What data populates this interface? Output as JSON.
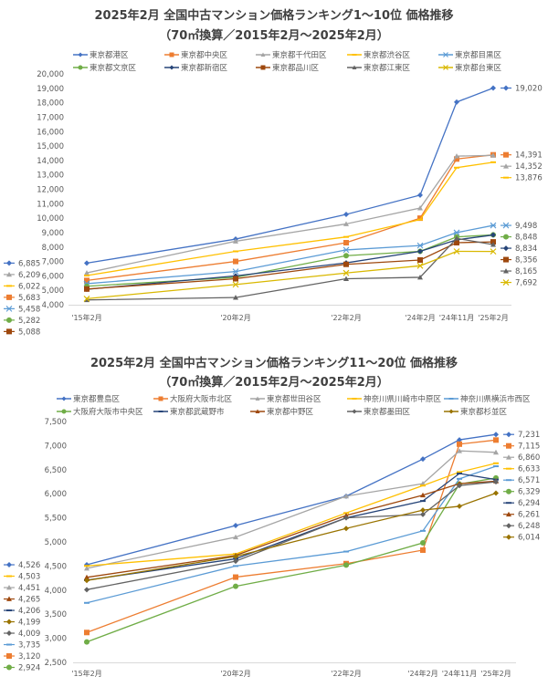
{
  "chart_data": [
    {
      "type": "line",
      "title": "2025年2月 全国中古マンション価格ランキング1～10位 価格推移",
      "subtitle": "（70㎡換算／2015年2月～2025年2月）",
      "categories": [
        "'15年2月",
        "'20年2月",
        "'22年2月",
        "'24年2月",
        "'24年11月",
        "'25年2月"
      ],
      "ylim": [
        4000,
        20000
      ],
      "ytick_step": 1000,
      "grid": false,
      "legend": "top",
      "series": [
        {
          "name": "東京都港区",
          "color": "#4472C4",
          "marker": "diamond",
          "values": [
            6885,
            8550,
            10260,
            11600,
            18050,
            19020
          ]
        },
        {
          "name": "東京都中央区",
          "color": "#ED7D31",
          "marker": "square",
          "values": [
            5683,
            7000,
            8300,
            10000,
            14100,
            14391
          ]
        },
        {
          "name": "東京都千代田区",
          "color": "#A5A5A5",
          "marker": "triangle",
          "values": [
            6209,
            8400,
            9600,
            10700,
            14300,
            14352
          ]
        },
        {
          "name": "東京都渋谷区",
          "color": "#FFC000",
          "marker": "dash",
          "values": [
            6022,
            7700,
            8700,
            9900,
            13500,
            13876
          ]
        },
        {
          "name": "東京都目黒区",
          "color": "#5B9BD5",
          "marker": "star",
          "values": [
            5458,
            6300,
            7800,
            8100,
            9000,
            9498
          ]
        },
        {
          "name": "東京都文京区",
          "color": "#70AD47",
          "marker": "circle",
          "values": [
            5282,
            5900,
            7400,
            7700,
            8700,
            8848
          ]
        },
        {
          "name": "東京都新宿区",
          "color": "#264478",
          "marker": "diamond",
          "values": [
            5068,
            6000,
            6900,
            7700,
            8500,
            8834
          ]
        },
        {
          "name": "東京都品川区",
          "color": "#9E480E",
          "marker": "square",
          "values": [
            5088,
            5800,
            6800,
            7100,
            8300,
            8356
          ]
        },
        {
          "name": "東京都江東区",
          "color": "#636363",
          "marker": "triangle",
          "values": [
            4330,
            4500,
            5800,
            5900,
            8600,
            8165
          ]
        },
        {
          "name": "東京都台東区",
          "color": "#D9B800",
          "marker": "x",
          "values": [
            4417,
            5400,
            6200,
            6700,
            7700,
            7692
          ]
        }
      ]
    },
    {
      "type": "line",
      "title": "2025年2月 全国中古マンション価格ランキング11～20位 価格推移",
      "subtitle": "（70㎡換算／2015年2月～2025年2月）",
      "categories": [
        "'15年2月",
        "'20年2月",
        "'22年2月",
        "'24年2月",
        "'24年11月",
        "'25年2月"
      ],
      "ylim": [
        2500,
        7500
      ],
      "ytick_step": 500,
      "grid": false,
      "legend": "top",
      "series": [
        {
          "name": "東京都豊島区",
          "color": "#4472C4",
          "marker": "diamond",
          "values": [
            4526,
            5340,
            5950,
            6720,
            7120,
            7231
          ]
        },
        {
          "name": "大阪府大阪市北区",
          "color": "#ED7D31",
          "marker": "square",
          "values": [
            3120,
            4270,
            4550,
            4830,
            7030,
            7115
          ]
        },
        {
          "name": "東京都世田谷区",
          "color": "#A5A5A5",
          "marker": "triangle",
          "values": [
            4451,
            5100,
            5950,
            6210,
            6890,
            6860
          ]
        },
        {
          "name": "神奈川県川崎市中原区",
          "color": "#FFC000",
          "marker": "dash",
          "values": [
            4503,
            4750,
            5600,
            6170,
            6450,
            6633
          ]
        },
        {
          "name": "神奈川県横浜市西区",
          "color": "#5B9BD5",
          "marker": "dash",
          "values": [
            3735,
            4500,
            4800,
            5230,
            6310,
            6571
          ]
        },
        {
          "name": "大阪府大阪市中央区",
          "color": "#70AD47",
          "marker": "circle",
          "values": [
            2924,
            4080,
            4520,
            4980,
            6200,
            6329
          ]
        },
        {
          "name": "東京都武蔵野市",
          "color": "#264478",
          "marker": "dash",
          "values": [
            4206,
            4650,
            5500,
            5850,
            6420,
            6294
          ]
        },
        {
          "name": "東京都中野区",
          "color": "#9E480E",
          "marker": "triangle",
          "values": [
            4265,
            4720,
            5550,
            5970,
            6210,
            6261
          ]
        },
        {
          "name": "東京都墨田区",
          "color": "#636363",
          "marker": "diamond",
          "values": [
            4009,
            4600,
            5500,
            5570,
            6170,
            6248
          ]
        },
        {
          "name": "東京都杉並区",
          "color": "#997300",
          "marker": "diamond",
          "values": [
            4199,
            4700,
            5280,
            5660,
            5740,
            6014
          ]
        }
      ]
    }
  ]
}
